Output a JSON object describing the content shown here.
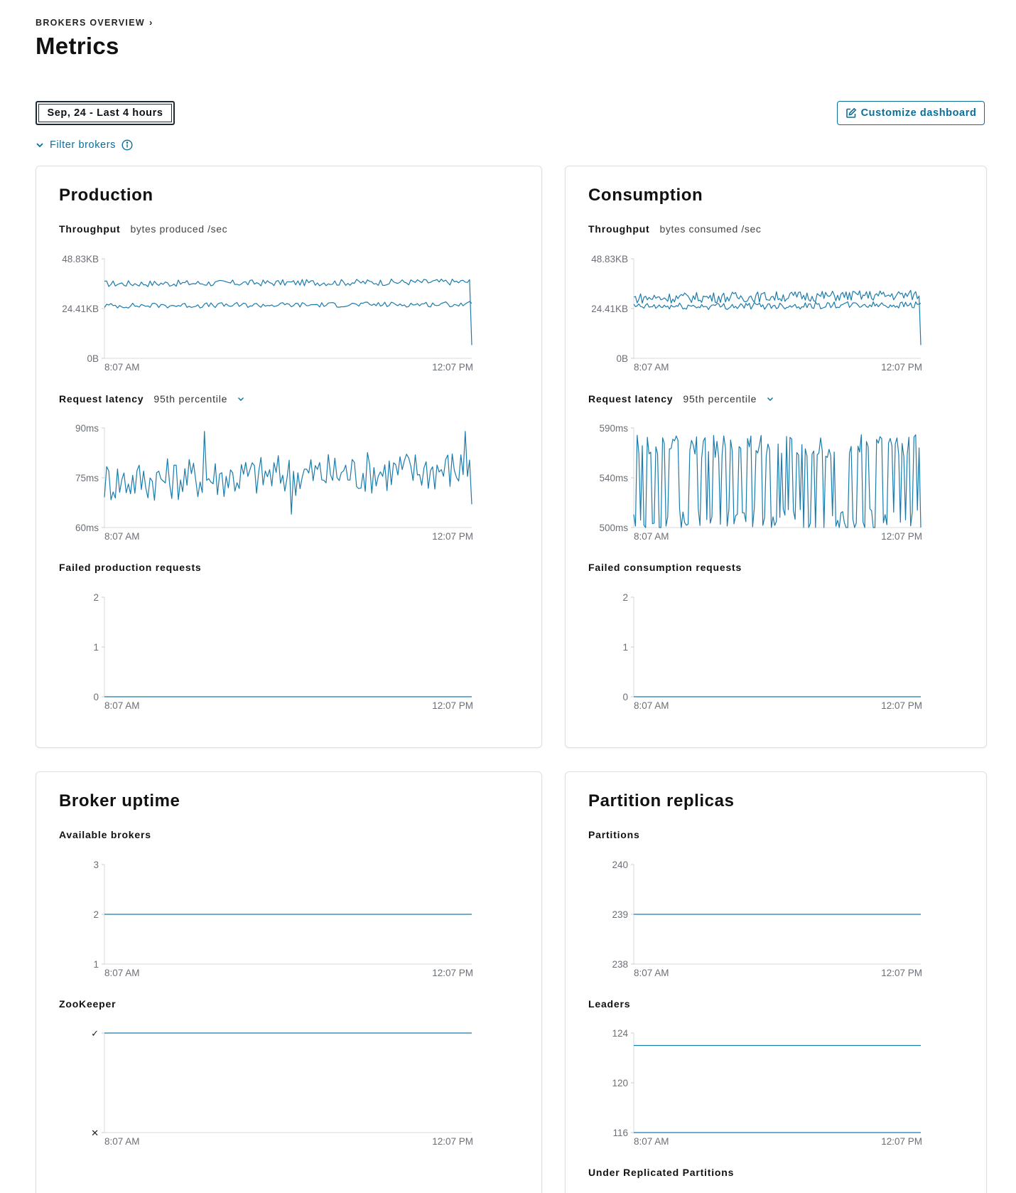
{
  "breadcrumb": {
    "label": "BROKERS OVERVIEW"
  },
  "page": {
    "title": "Metrics"
  },
  "toolbar": {
    "date_range_label": "Sep, 24 - Last 4 hours",
    "customize_label": "Customize dashboard",
    "filter_label": "Filter brokers"
  },
  "colors": {
    "accent": "#0b6e99",
    "line": "#1b7bab"
  },
  "cards": {
    "production": {
      "title": "Production",
      "throughput_label": "Throughput",
      "throughput_unit": "bytes produced /sec",
      "latency_label": "Request latency",
      "latency_option": "95th percentile",
      "failed_label": "Failed production requests"
    },
    "consumption": {
      "title": "Consumption",
      "throughput_label": "Throughput",
      "throughput_unit": "bytes consumed /sec",
      "latency_label": "Request latency",
      "latency_option": "95th percentile",
      "failed_label": "Failed consumption requests"
    },
    "uptime": {
      "title": "Broker uptime",
      "available_label": "Available brokers",
      "zookeeper_label": "ZooKeeper"
    },
    "replicas": {
      "title": "Partition replicas",
      "partitions_label": "Partitions",
      "leaders_label": "Leaders",
      "under_replicated_label": "Under Replicated Partitions"
    }
  },
  "chart_data": [
    {
      "id": "prod_throughput",
      "type": "line",
      "yticks": [
        "48.83KB",
        "24.41KB",
        "0B"
      ],
      "ylim": [
        0,
        48.83
      ],
      "xticks": [
        "8:07 AM",
        "12:07 PM"
      ],
      "grid": false,
      "series": [
        {
          "approx": true,
          "level": 36.6,
          "noise": 1.6,
          "end": 6.5,
          "values": []
        },
        {
          "approx": true,
          "level": 25.8,
          "noise": 1.3,
          "values": []
        }
      ]
    },
    {
      "id": "prod_latency",
      "type": "line",
      "yticks": [
        "90ms",
        "75ms",
        "60ms"
      ],
      "ylim": [
        60,
        90
      ],
      "xticks": [
        "8:07 AM",
        "12:07 PM"
      ],
      "grid": false,
      "series": [
        {
          "approx": true,
          "level": 74.0,
          "noise": 6.5,
          "spikes": [
            [
              0.27,
              89
            ],
            [
              0.98,
              89
            ],
            [
              0.51,
              64
            ]
          ],
          "end": 67,
          "values": []
        }
      ]
    },
    {
      "id": "prod_failed",
      "type": "line",
      "yticks": [
        "2",
        "1",
        "0"
      ],
      "ylim": [
        0,
        2
      ],
      "xticks": [
        "8:07 AM",
        "12:07 PM"
      ],
      "grid": false,
      "series": [
        {
          "values": [
            0,
            0
          ]
        }
      ]
    },
    {
      "id": "cons_throughput",
      "type": "line",
      "yticks": [
        "48.83KB",
        "24.41KB",
        "0B"
      ],
      "ylim": [
        0,
        48.83
      ],
      "xticks": [
        "8:07 AM",
        "12:07 PM"
      ],
      "grid": false,
      "series": [
        {
          "approx": true,
          "level": 29.5,
          "noise": 2.6,
          "end": 6.5,
          "values": []
        },
        {
          "approx": true,
          "level": 25.3,
          "noise": 1.7,
          "values": []
        }
      ]
    },
    {
      "id": "cons_latency",
      "type": "line",
      "yticks": [
        "590ms",
        "540ms",
        "500ms"
      ],
      "ylim": [
        500,
        590
      ],
      "xticks": [
        "8:07 AM",
        "12:07 PM"
      ],
      "grid": false,
      "series": [
        {
          "approx": true,
          "bimodal": [
            507,
            573
          ],
          "values": []
        }
      ]
    },
    {
      "id": "cons_failed",
      "type": "line",
      "yticks": [
        "2",
        "1",
        "0"
      ],
      "ylim": [
        0,
        2
      ],
      "xticks": [
        "8:07 AM",
        "12:07 PM"
      ],
      "grid": false,
      "series": [
        {
          "values": [
            0,
            0
          ]
        }
      ]
    },
    {
      "id": "available_brokers",
      "type": "line",
      "yticks": [
        "3",
        "2",
        "1"
      ],
      "ylim": [
        1,
        3
      ],
      "xticks": [
        "8:07 AM",
        "12:07 PM"
      ],
      "grid": false,
      "series": [
        {
          "values": [
            2,
            2
          ]
        }
      ]
    },
    {
      "id": "zookeeper",
      "type": "line",
      "yticks": [
        "✓",
        "✕"
      ],
      "ylim": [
        0,
        1
      ],
      "xticks": [
        "8:07 AM",
        "12:07 PM"
      ],
      "grid": false,
      "series": [
        {
          "values": [
            1,
            1
          ]
        }
      ]
    },
    {
      "id": "partitions",
      "type": "line",
      "yticks": [
        "240",
        "239",
        "238"
      ],
      "ylim": [
        238,
        240
      ],
      "xticks": [
        "8:07 AM",
        "12:07 PM"
      ],
      "grid": false,
      "series": [
        {
          "values": [
            239,
            239
          ]
        }
      ]
    },
    {
      "id": "leaders",
      "type": "line",
      "yticks": [
        "124",
        "120",
        "116"
      ],
      "ylim": [
        116,
        124
      ],
      "xticks": [
        "8:07 AM",
        "12:07 PM"
      ],
      "grid": false,
      "series": [
        {
          "values": [
            123,
            123
          ]
        },
        {
          "values": [
            116,
            116
          ]
        }
      ]
    }
  ]
}
